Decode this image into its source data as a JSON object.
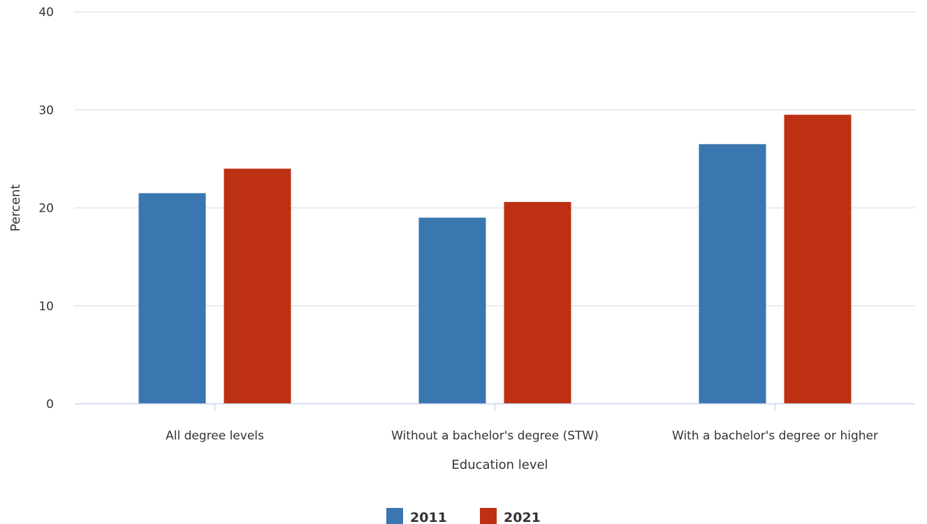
{
  "chart_data": {
    "type": "bar",
    "title": "",
    "xlabel": "Education level",
    "ylabel": "Percent",
    "ylim": [
      0,
      40
    ],
    "yticks": [
      0,
      10,
      20,
      30,
      40
    ],
    "categories": [
      "All degree levels",
      "Without a bachelor's degree (STW)",
      "With a bachelor's degree or higher"
    ],
    "series": [
      {
        "name": "2011",
        "color": "#3a76b0",
        "values": [
          21.5,
          19.0,
          26.5
        ]
      },
      {
        "name": "2021",
        "color": "#bd3013",
        "values": [
          24.0,
          20.6,
          29.5
        ]
      }
    ],
    "grid": true,
    "legend_position": "bottom-center"
  }
}
